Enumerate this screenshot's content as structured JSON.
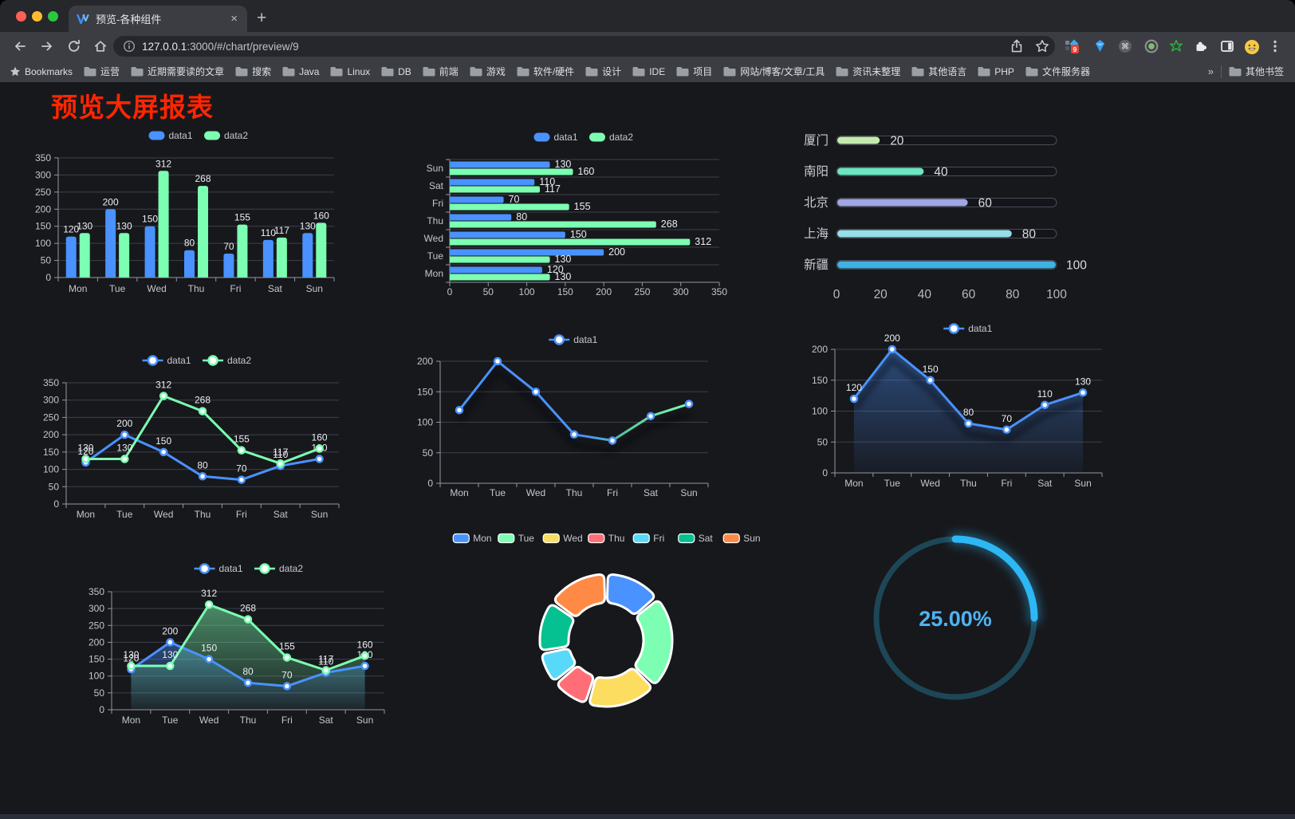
{
  "browser": {
    "tab_title": "预览-各种组件",
    "close_x": "×",
    "new_tab_plus": "+",
    "url_host": "127.0.0.1",
    "url_rest": ":3000/#/chart/preview/9",
    "bookmarks_label": "Bookmarks",
    "bookmarks": [
      "运营",
      "近期需要读的文章",
      "搜索",
      "Java",
      "Linux",
      "DB",
      "前端",
      "游戏",
      "软件/硬件",
      "设计",
      "IDE",
      "项目",
      "网站/博客/文章/工具",
      "资讯未整理",
      "其他语言",
      "PHP",
      "文件服务器"
    ],
    "overflow_chevron": "»",
    "other_bookmarks": "其他书签",
    "extension_badge": "9"
  },
  "page": {
    "title": "预览大屏报表"
  },
  "palette": {
    "data1": "#4992ff",
    "data2": "#7cffb2",
    "accent_red_title": "#ff2600",
    "gauge_blue": "#2db7f5"
  },
  "chart_data": [
    {
      "id": "bar-vertical",
      "type": "bar",
      "categories": [
        "Mon",
        "Tue",
        "Wed",
        "Thu",
        "Fri",
        "Sat",
        "Sun"
      ],
      "series": [
        {
          "name": "data1",
          "color": "#4992ff",
          "values": [
            120,
            200,
            150,
            80,
            70,
            110,
            130
          ]
        },
        {
          "name": "data2",
          "color": "#7cffb2",
          "values": [
            130,
            130,
            312,
            268,
            155,
            117,
            160
          ]
        }
      ],
      "ylim": [
        0,
        350
      ],
      "yticks": [
        0,
        50,
        100,
        150,
        200,
        250,
        300,
        350
      ],
      "legend": [
        "data1",
        "data2"
      ],
      "legend_position": "top",
      "grid": true,
      "value_labels": true
    },
    {
      "id": "bar-horizontal",
      "type": "bar",
      "orientation": "horizontal",
      "categories": [
        "Mon",
        "Tue",
        "Wed",
        "Thu",
        "Fri",
        "Sat",
        "Sun"
      ],
      "categories_note": "Mon at bottom, Sun at top",
      "series": [
        {
          "name": "data1",
          "color": "#4992ff",
          "values": [
            120,
            200,
            150,
            80,
            70,
            110,
            130
          ]
        },
        {
          "name": "data2",
          "color": "#7cffb2",
          "values": [
            130,
            130,
            312,
            268,
            155,
            117,
            160
          ]
        }
      ],
      "xlim": [
        0,
        350
      ],
      "xticks": [
        0,
        50,
        100,
        150,
        200,
        250,
        300,
        350
      ],
      "legend": [
        "data1",
        "data2"
      ],
      "value_labels": true
    },
    {
      "id": "city-progress",
      "type": "bar",
      "style": "rounded progress bars with track",
      "items": [
        {
          "label": "厦门",
          "value": 20,
          "color": "#c4ebad"
        },
        {
          "label": "南阳",
          "value": 40,
          "color": "#6be6c1"
        },
        {
          "label": "北京",
          "value": 60,
          "color": "#a0a7e6"
        },
        {
          "label": "上海",
          "value": 80,
          "color": "#96dee8"
        },
        {
          "label": "新疆",
          "value": 100,
          "color": "#3fb1e3"
        }
      ],
      "xlim": [
        0,
        100
      ],
      "xticks": [
        0,
        20,
        40,
        60,
        80,
        100
      ],
      "value_labels": true
    },
    {
      "id": "line-basic",
      "type": "line",
      "categories": [
        "Mon",
        "Tue",
        "Wed",
        "Thu",
        "Fri",
        "Sat",
        "Sun"
      ],
      "series": [
        {
          "name": "data1",
          "color": "#4992ff",
          "values": [
            120,
            200,
            150,
            80,
            70,
            110,
            130
          ]
        },
        {
          "name": "data2",
          "color": "#7cffb2",
          "values": [
            130,
            130,
            312,
            268,
            155,
            117,
            160
          ]
        }
      ],
      "ylim": [
        0,
        350
      ],
      "yticks": [
        0,
        50,
        100,
        150,
        200,
        250,
        300,
        350
      ],
      "legend": [
        "data1",
        "data2"
      ],
      "value_labels": true
    },
    {
      "id": "line-gradient",
      "type": "line",
      "categories": [
        "Mon",
        "Tue",
        "Wed",
        "Thu",
        "Fri",
        "Sat",
        "Sun"
      ],
      "series": [
        {
          "name": "data1",
          "color": "#4992ff",
          "gradient": [
            "#4992ff",
            "#7cffb2"
          ],
          "values": [
            120,
            200,
            150,
            80,
            70,
            110,
            130
          ]
        }
      ],
      "ylim": [
        0,
        200
      ],
      "yticks": [
        0,
        50,
        100,
        150,
        200
      ],
      "legend": [
        "data1"
      ],
      "value_labels": false,
      "shadow": true
    },
    {
      "id": "line-area",
      "type": "area",
      "categories": [
        "Mon",
        "Tue",
        "Wed",
        "Thu",
        "Fri",
        "Sat",
        "Sun"
      ],
      "series": [
        {
          "name": "data1",
          "color": "#4992ff",
          "values": [
            120,
            200,
            150,
            80,
            70,
            110,
            130
          ]
        }
      ],
      "ylim": [
        0,
        200
      ],
      "yticks": [
        0,
        50,
        100,
        150,
        200
      ],
      "legend": [
        "data1"
      ],
      "value_labels": true,
      "shadow": true
    },
    {
      "id": "line-area-two",
      "type": "area",
      "categories": [
        "Mon",
        "Tue",
        "Wed",
        "Thu",
        "Fri",
        "Sat",
        "Sun"
      ],
      "series": [
        {
          "name": "data1",
          "color": "#4992ff",
          "values": [
            120,
            200,
            150,
            80,
            70,
            110,
            130
          ]
        },
        {
          "name": "data2",
          "color": "#7cffb2",
          "values": [
            130,
            130,
            312,
            268,
            155,
            117,
            160
          ]
        }
      ],
      "ylim": [
        0,
        350
      ],
      "yticks": [
        0,
        50,
        100,
        150,
        200,
        250,
        300,
        350
      ],
      "legend": [
        "data1",
        "data2"
      ],
      "value_labels": true
    },
    {
      "id": "donut",
      "type": "pie",
      "style": "donut with rounded corners and white borders",
      "items": [
        {
          "label": "Mon",
          "value": 120,
          "color": "#4992ff"
        },
        {
          "label": "Tue",
          "value": 200,
          "color": "#7cffb2"
        },
        {
          "label": "Wed",
          "value": 150,
          "color": "#fddd60"
        },
        {
          "label": "Thu",
          "value": 80,
          "color": "#ff6e76"
        },
        {
          "label": "Fri",
          "value": 70,
          "color": "#58d9f9"
        },
        {
          "label": "Sat",
          "value": 110,
          "color": "#05c091"
        },
        {
          "label": "Sun",
          "value": 130,
          "color": "#ff8a45"
        }
      ],
      "legend_position": "top"
    },
    {
      "id": "gauge",
      "type": "gauge",
      "value": 25,
      "display": "25.00%",
      "color": "#2db7f5",
      "track_color": "#1d4757",
      "text_color": "#4fb3f2"
    }
  ]
}
